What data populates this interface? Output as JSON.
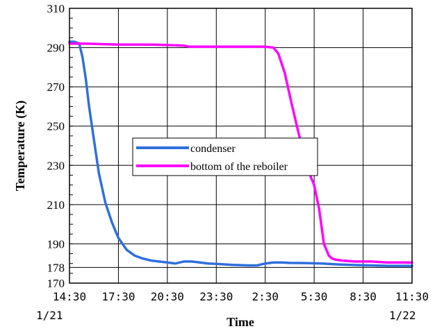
{
  "chart_data": {
    "type": "line",
    "xlabel": "Time",
    "ylabel": "Temperature (K)",
    "x_ticks": [
      "14:30",
      "17:30",
      "20:30",
      "23:30",
      "2:30",
      "5:30",
      "8:30",
      "11:30"
    ],
    "x_dates": {
      "start": "1/21",
      "end": "1/22"
    },
    "x_range_hours": [
      0,
      21
    ],
    "y_ticks": [
      170,
      178,
      190,
      210,
      230,
      250,
      270,
      290,
      310
    ],
    "ylim": [
      170,
      310
    ],
    "grid": true,
    "legend_position": "center-left",
    "series": [
      {
        "name": "condenser",
        "color": "#2f6fdc",
        "x": [
          0.0,
          0.3,
          0.6,
          0.8,
          1.0,
          1.2,
          1.5,
          1.8,
          2.2,
          2.6,
          3.0,
          3.5,
          4.0,
          4.5,
          5.0,
          5.5,
          6.0,
          6.5,
          7.0,
          7.5,
          8.0,
          8.5,
          9.0,
          10.0,
          11.0,
          11.5,
          12.0,
          12.5,
          13.0,
          13.5,
          14.5,
          15.5,
          16.5,
          17.5,
          18.5,
          19.5,
          21.0
        ],
        "y": [
          293,
          293,
          292,
          285,
          274,
          260,
          243,
          226,
          211,
          201,
          193,
          187,
          184,
          182.5,
          181.5,
          181,
          180.5,
          180,
          181,
          181,
          180.5,
          180,
          179.8,
          179.3,
          179,
          179,
          180,
          180.5,
          180.5,
          180.3,
          180.2,
          180,
          179.5,
          179.2,
          179,
          178.8,
          178.8
        ]
      },
      {
        "name": "bottom of the reboiler",
        "color": "#ff00ff",
        "x": [
          0.0,
          0.5,
          1.0,
          3.0,
          5.0,
          7.0,
          7.3,
          7.8,
          9.0,
          11.0,
          12.0,
          12.5,
          12.8,
          13.2,
          13.6,
          14.0,
          14.4,
          14.8,
          15.0,
          15.3,
          15.6,
          15.9,
          16.1,
          16.3,
          16.7,
          17.5,
          18.5,
          19.5,
          21.0
        ],
        "y": [
          292,
          292,
          292,
          291.5,
          291.5,
          291,
          290.5,
          290.5,
          290.5,
          290.5,
          290.5,
          290,
          287,
          277,
          262,
          248,
          234,
          224,
          220,
          208,
          190,
          184,
          182.5,
          182,
          181.5,
          181,
          181,
          180.5,
          180.5
        ]
      }
    ]
  }
}
